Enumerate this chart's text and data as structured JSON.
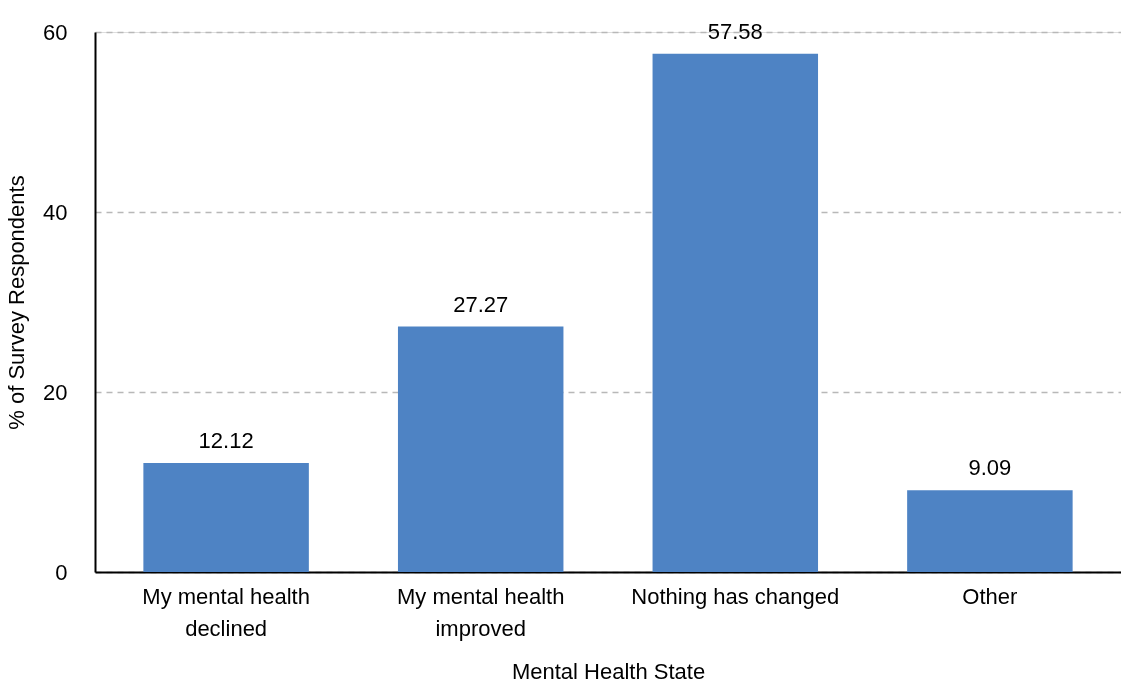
{
  "chart_data": {
    "type": "bar",
    "xlabel": "Mental Health State",
    "ylabel": "% of Survey Respondents",
    "categories": [
      "My mental health declined",
      "My mental health improved",
      "Nothing has changed",
      "Other"
    ],
    "values": [
      12.12,
      27.27,
      57.58,
      9.09
    ],
    "color": "#4e83c4",
    "ylim": [
      0,
      60
    ],
    "yticks": [
      0,
      20,
      40,
      60
    ],
    "grid": "y",
    "data_labels": true
  }
}
